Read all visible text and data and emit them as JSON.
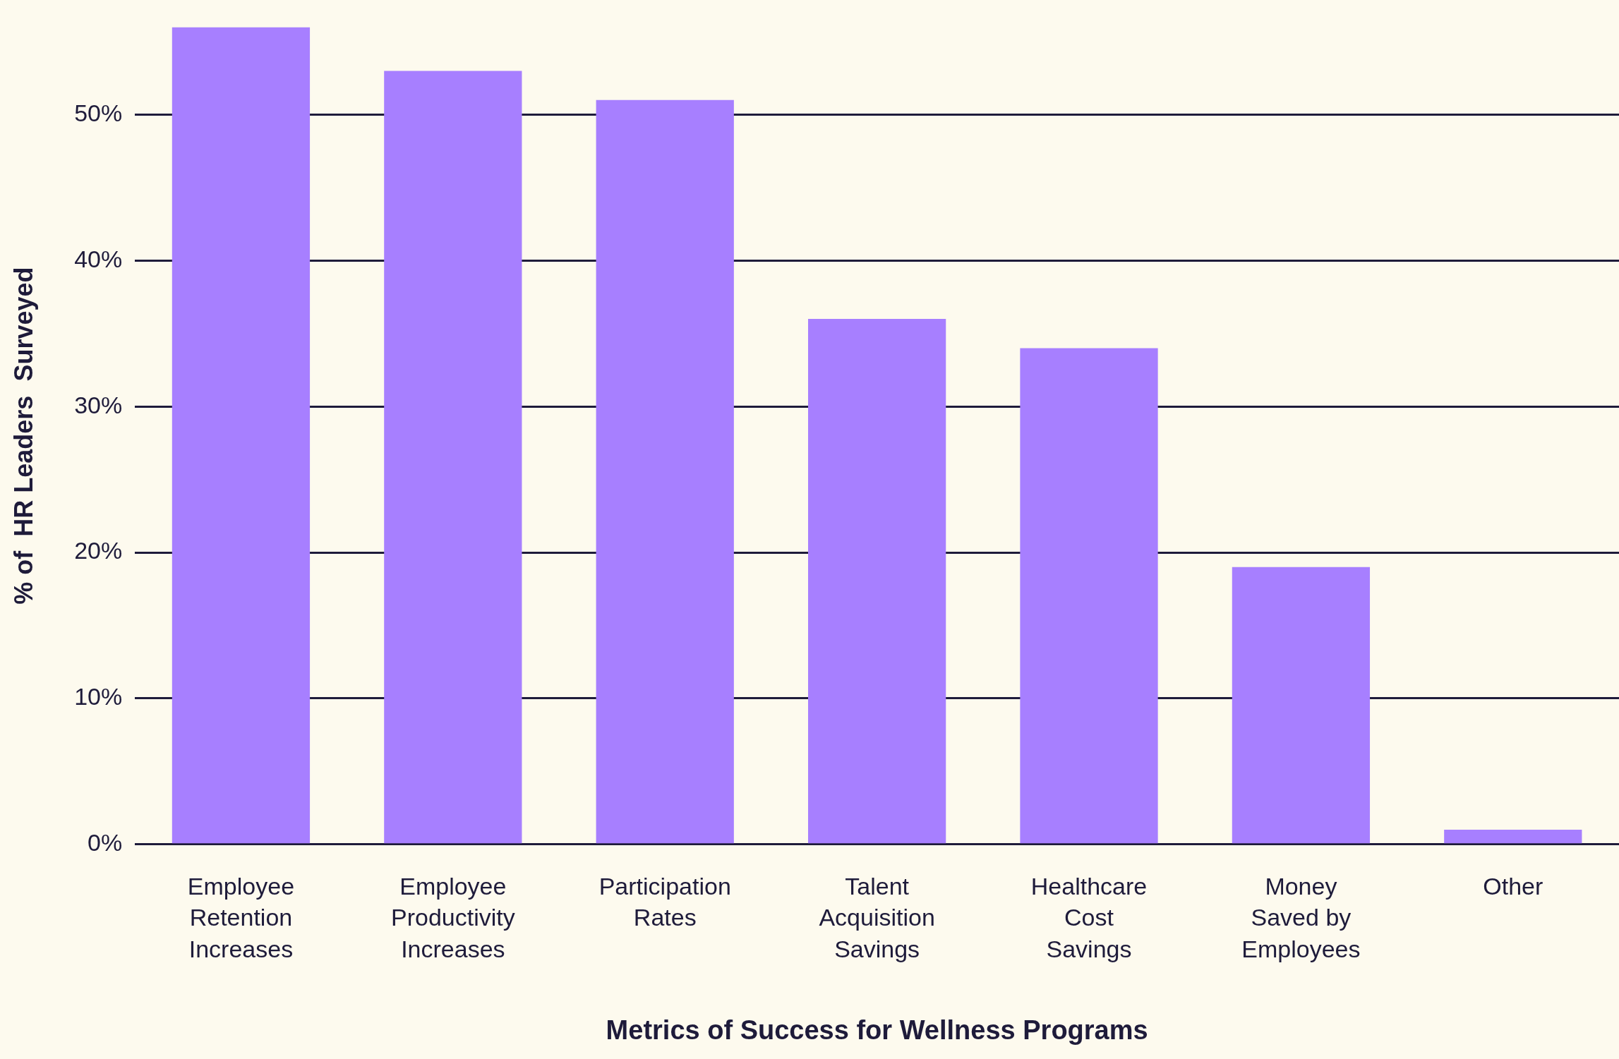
{
  "chart_data": {
    "type": "bar",
    "xlabel": "Metrics of Success for Wellness Programs",
    "ylabel": "% of  HR Leaders  Surveyed",
    "categories": [
      "Employee Retention Increases",
      "Employee Productivity Increases",
      "Participation Rates",
      "Talent Acquisition Savings",
      "Healthcare Cost Savings",
      "Money Saved by Employees",
      "Other"
    ],
    "values": [
      56,
      53,
      51,
      36,
      34,
      19,
      1
    ],
    "color": "#a77fff",
    "ylim": [
      0,
      56
    ],
    "yticks": [
      {
        "value": 0,
        "label": "0%"
      },
      {
        "value": 10,
        "label": "10%"
      },
      {
        "value": 20,
        "label": "20%"
      },
      {
        "value": 30,
        "label": "30%"
      },
      {
        "value": 40,
        "label": "40%"
      },
      {
        "value": 50,
        "label": "50%"
      }
    ],
    "grid": "y",
    "legend": false
  }
}
